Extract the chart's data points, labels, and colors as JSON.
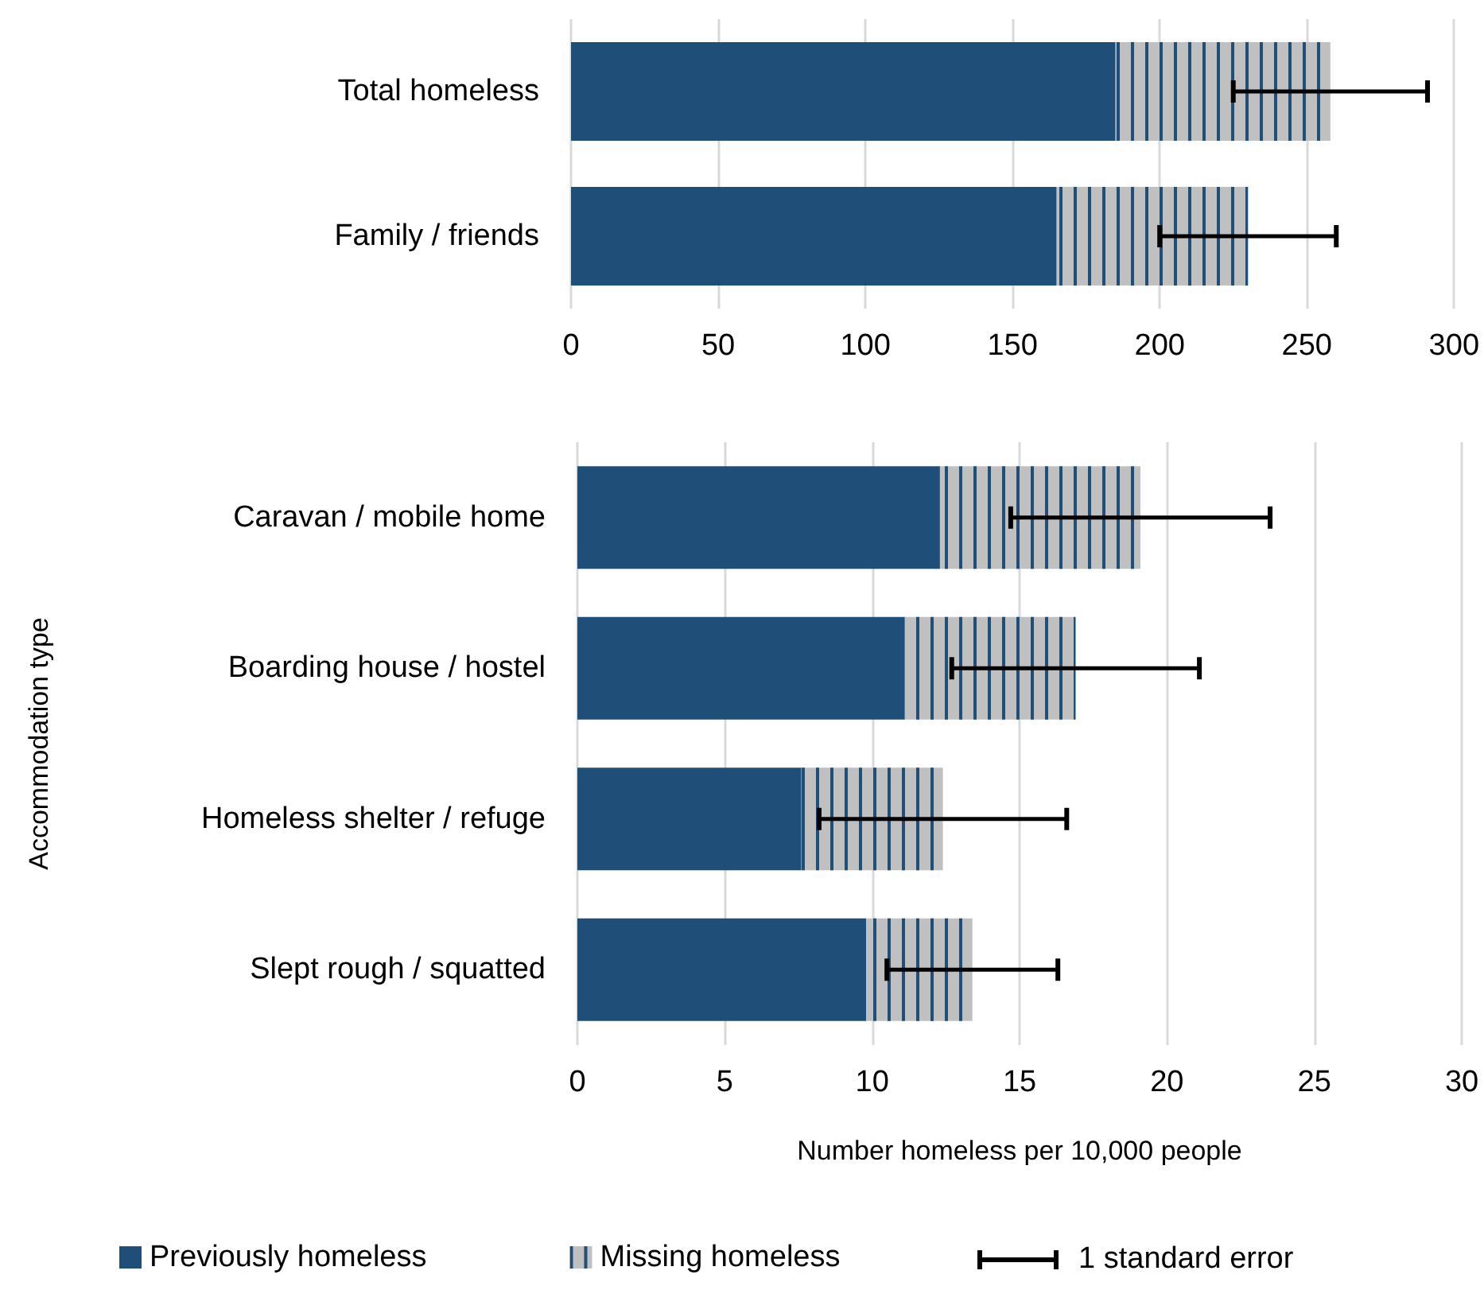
{
  "chart_data": [
    {
      "type": "bar",
      "orientation": "horizontal",
      "stacked": true,
      "categories": [
        "Total homeless",
        "Family / friends"
      ],
      "series": [
        {
          "color": "#1f4e79",
          "values": [
            185,
            165
          ]
        },
        {
          "color": "#c0c0c0",
          "values": [
            73,
            65
          ],
          "errors": [
            33,
            30
          ]
        }
      ],
      "xlim": [
        0,
        300
      ],
      "xticks": [
        0,
        50,
        100,
        150,
        200,
        250,
        300
      ],
      "grid": "x",
      "legend": false
    },
    {
      "type": "bar",
      "orientation": "horizontal",
      "stacked": true,
      "categories": [
        "Caravan / mobile home",
        "Boarding house / hostel",
        "Homeless shelter / refuge",
        "Slept rough / squatted"
      ],
      "series": [
        {
          "name": "Previously homeless",
          "color": "#1f4e79",
          "values": [
            12.3,
            11.1,
            7.6,
            9.8
          ]
        },
        {
          "name": "Missing homeless",
          "color": "#c0c0c0",
          "values": [
            6.8,
            5.8,
            4.8,
            3.6
          ],
          "errors": [
            4.4,
            4.2,
            4.2,
            2.9
          ]
        }
      ],
      "xlim": [
        0,
        30
      ],
      "xticks": [
        0,
        5,
        10,
        15,
        20,
        25,
        30
      ],
      "grid": "x",
      "legend": "bottom",
      "xlabel": "Number homeless per 10,000 people",
      "ylabel": "Accommodation type",
      "annotations": [
        "1 standard error"
      ]
    }
  ]
}
